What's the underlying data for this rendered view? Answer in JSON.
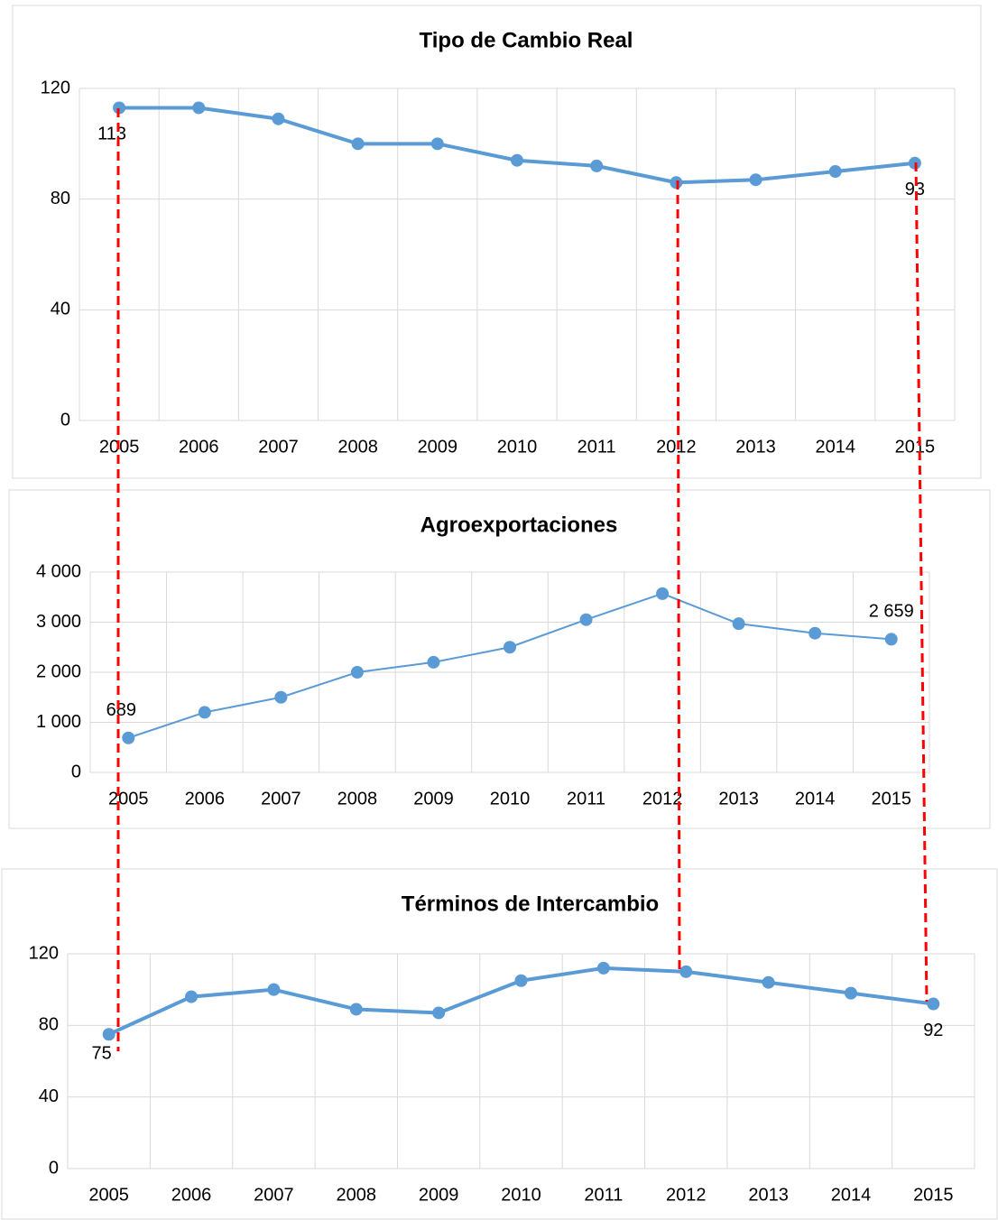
{
  "chart_data": [
    {
      "type": "line",
      "title": "Tipo de Cambio Real",
      "categories": [
        "2005",
        "2006",
        "2007",
        "2008",
        "2009",
        "2010",
        "2011",
        "2012",
        "2013",
        "2014",
        "2015"
      ],
      "series": [
        {
          "name": "Tipo de Cambio Real",
          "color": "#5b9bd5",
          "values": [
            113,
            113,
            109,
            100,
            100,
            94,
            92,
            86,
            87,
            90,
            93
          ],
          "value_labels": [
            "113",
            null,
            null,
            null,
            null,
            null,
            null,
            null,
            null,
            null,
            "93"
          ]
        }
      ],
      "ylim": [
        0,
        120
      ],
      "yticks": [
        0,
        40,
        80,
        120
      ],
      "grid": true
    },
    {
      "type": "line",
      "title": "Agroexportaciones",
      "categories": [
        "2005",
        "2006",
        "2007",
        "2008",
        "2009",
        "2010",
        "2011",
        "2012",
        "2013",
        "2014",
        "2015"
      ],
      "series": [
        {
          "name": "Agroexportaciones",
          "color": "#5b9bd5",
          "values": [
            689,
            1200,
            1500,
            2000,
            2200,
            2500,
            3050,
            3570,
            2970,
            2780,
            2659
          ],
          "value_labels": [
            "689",
            null,
            null,
            null,
            null,
            null,
            null,
            null,
            null,
            null,
            "2 659"
          ]
        }
      ],
      "ylim": [
        0,
        4000
      ],
      "yticks": [
        0,
        {
          "value": 1000,
          "label": "1 000"
        },
        {
          "value": 2000,
          "label": "2 000"
        },
        {
          "value": 3000,
          "label": "3 000"
        },
        {
          "value": 4000,
          "label": "4 000"
        }
      ],
      "grid": true
    },
    {
      "type": "line",
      "title": "Términos de Intercambio",
      "categories": [
        "2005",
        "2006",
        "2007",
        "2008",
        "2009",
        "2010",
        "2011",
        "2012",
        "2013",
        "2014",
        "2015"
      ],
      "series": [
        {
          "name": "Términos de Intercambio",
          "color": "#5b9bd5",
          "values": [
            75,
            96,
            100,
            89,
            87,
            105,
            112,
            110,
            104,
            98,
            92
          ],
          "value_labels": [
            "75",
            null,
            null,
            null,
            null,
            null,
            null,
            null,
            null,
            null,
            "92"
          ]
        }
      ],
      "ylim": [
        0,
        120
      ],
      "yticks": [
        0,
        40,
        80,
        120
      ],
      "grid": true
    }
  ]
}
